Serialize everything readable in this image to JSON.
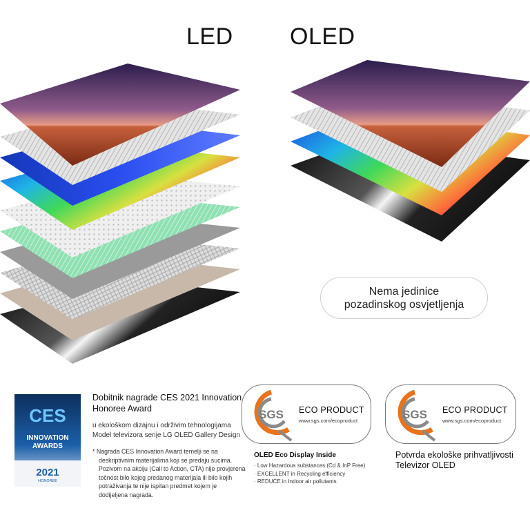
{
  "titles": {
    "led": "LED",
    "oled": "OLED"
  },
  "no_backlight": {
    "line1": "Nema jedinice",
    "line2": "pozadinskog osvjetljenja"
  },
  "ces": {
    "badge": {
      "brand": "CES",
      "line1": "INNOVATION",
      "line2": "AWARDS",
      "year": "2021",
      "honoree": "HONOREE"
    },
    "heading": "Dobitnik nagrade CES 2021 Innovation Honoree Award",
    "sub_line1": "u ekološkom dizajnu i održivim tehnologijama",
    "sub_line2": "Model televizora serije LG OLED Gallery Design",
    "note": "* Nagrada CES Innovation Award temelji se na deskriptivnim materijalima koji se predaju sucima. Pozivom na akciju (Call to Action, CTA) nije provjerena točnost bilo kojeg predanog materijala ili bilo kojih potraživanja te nije ispitan predmet kojem je dodijeljena nagrada."
  },
  "eco_display": {
    "logo_text": "SGS",
    "title": "ECO PRODUCT",
    "url": "www.sgs.com/ecoproduct",
    "caption_title": "OLED Eco Display Inside",
    "items": [
      "Low Hazardous substances (Cd & InP Free)",
      "EXCELLENT in Recycling efficiency",
      "REDUCE in Indoor air pollutants"
    ]
  },
  "eco_tv": {
    "logo_text": "SGS",
    "title": "ECO PRODUCT",
    "url": "www.sgs.com/ecoproduct",
    "caption_line1": "Potvrda ekološke prihvatljivosti",
    "caption_line2": "Televizor OLED"
  },
  "colors": {
    "sgs_orange": "#e8731c",
    "sgs_gray": "#8a8a8a",
    "ces_blue": "#1b5fa8",
    "ces_dark": "#0d2f5c"
  }
}
